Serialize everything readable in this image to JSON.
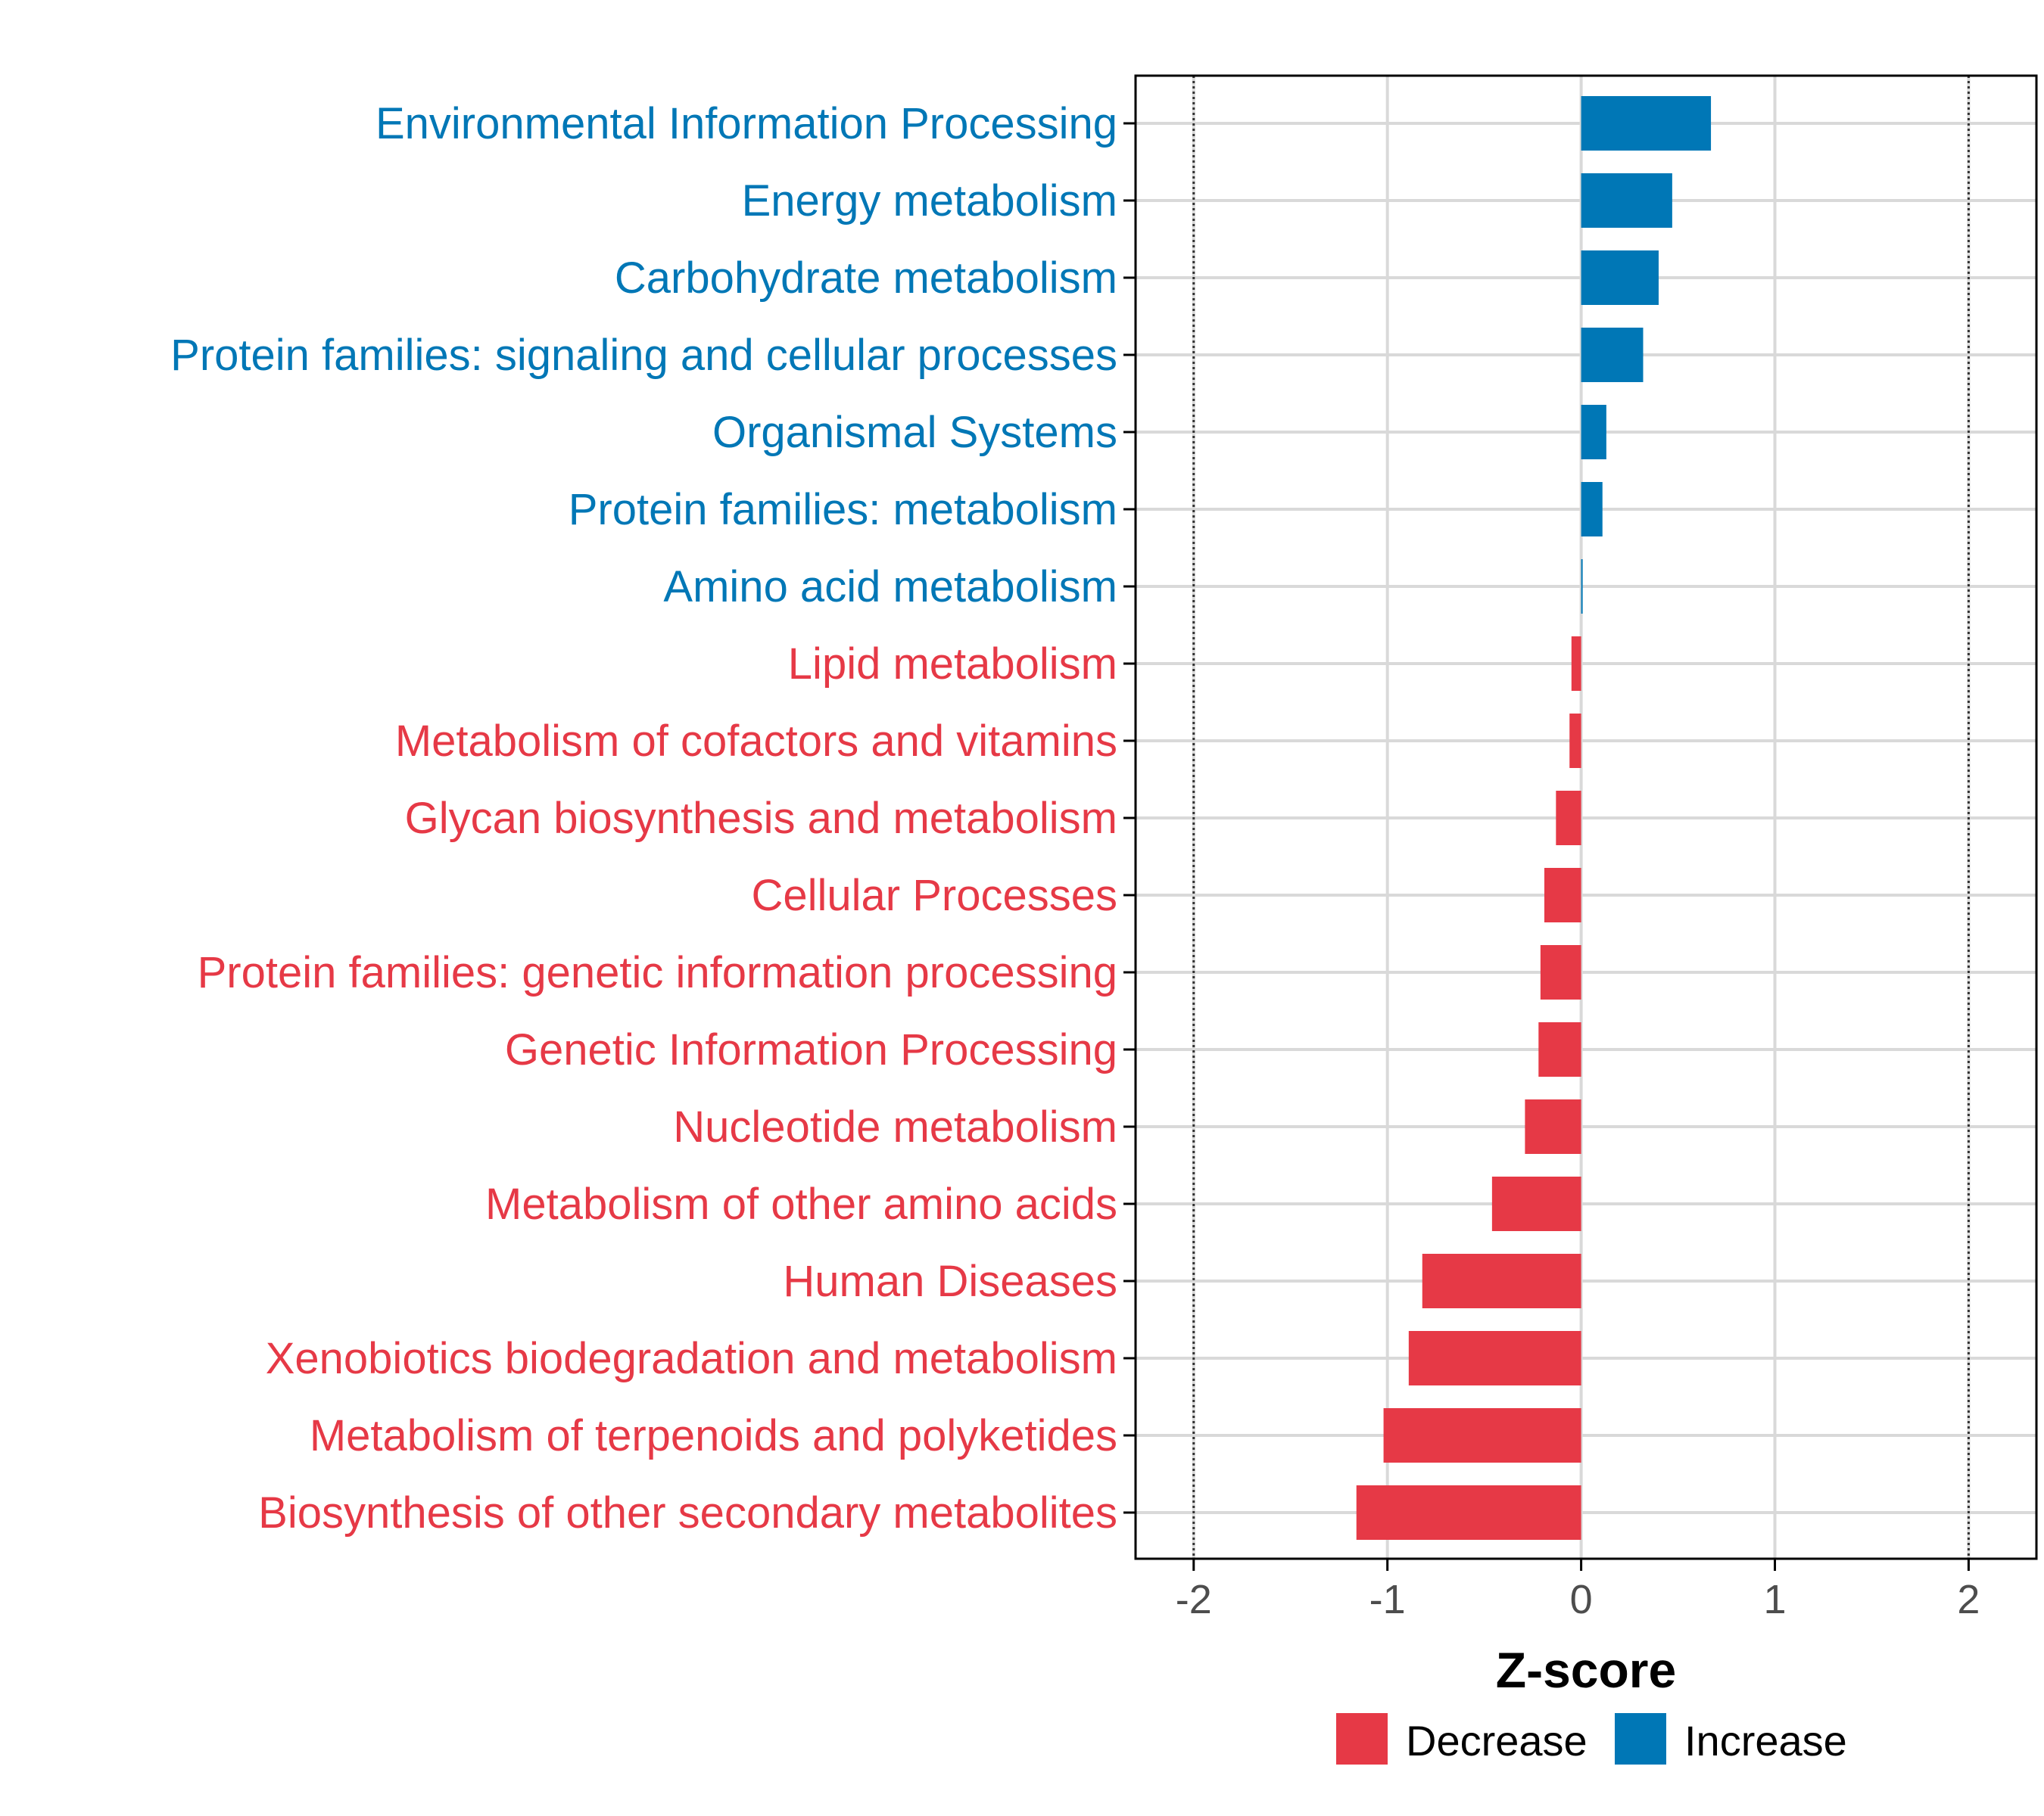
{
  "chart_data": {
    "type": "bar",
    "orientation": "horizontal",
    "title": "",
    "xlabel": "Z-score",
    "ylabel": "",
    "xlim": [
      -2.3,
      2.35
    ],
    "xticks": [
      -2,
      -1,
      0,
      1,
      2
    ],
    "xtick_labels": [
      "-2",
      "-1",
      "0",
      "1",
      "2"
    ],
    "reference_lines": [
      -2,
      2
    ],
    "grid": true,
    "categories": [
      "Environmental Information Processing",
      "Energy metabolism",
      "Carbohydrate metabolism",
      "Protein families: signaling and cellular processes",
      "Organismal Systems",
      "Protein families: metabolism",
      "Amino acid metabolism",
      "Lipid metabolism",
      "Metabolism of cofactors and vitamins",
      "Glycan biosynthesis and metabolism",
      "Cellular Processes",
      "Protein families: genetic information processing",
      "Genetic Information Processing",
      "Nucleotide metabolism",
      "Metabolism of other amino acids",
      "Human Diseases",
      "Xenobiotics biodegradation and metabolism",
      "Metabolism of terpenoids and polyketides",
      "Biosynthesis of other secondary metabolites"
    ],
    "values": [
      0.67,
      0.47,
      0.4,
      0.32,
      0.13,
      0.11,
      0.005,
      -0.05,
      -0.06,
      -0.13,
      -0.19,
      -0.21,
      -0.22,
      -0.29,
      -0.46,
      -0.82,
      -0.89,
      -1.02,
      -1.16
    ],
    "groups": [
      "Increase",
      "Increase",
      "Increase",
      "Increase",
      "Increase",
      "Increase",
      "Increase",
      "Decrease",
      "Decrease",
      "Decrease",
      "Decrease",
      "Decrease",
      "Decrease",
      "Decrease",
      "Decrease",
      "Decrease",
      "Decrease",
      "Decrease",
      "Decrease"
    ],
    "legend": [
      {
        "name": "Decrease",
        "color": "#e63946"
      },
      {
        "name": "Increase",
        "color": "#0077b6"
      }
    ],
    "legend_position": "bottom"
  },
  "colors": {
    "decrease": "#e63946",
    "increase": "#0077b6",
    "grid": "#d9d9d9",
    "axis": "#000000"
  }
}
